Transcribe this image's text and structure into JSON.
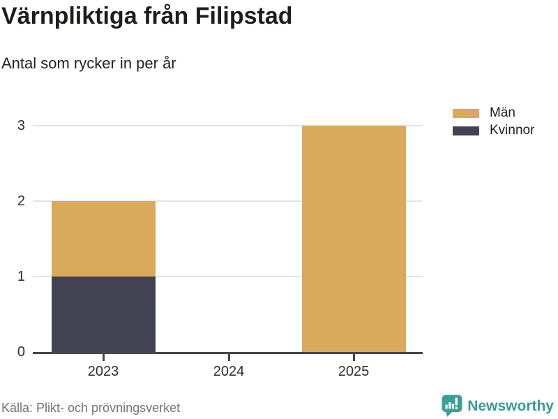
{
  "header": {
    "title": "Värnpliktiga från Filipstad",
    "subtitle": "Antal som rycker in per år"
  },
  "legend": {
    "items": [
      {
        "label": "Män",
        "color": "#d9aa5b"
      },
      {
        "label": "Kvinnor",
        "color": "#434253"
      }
    ]
  },
  "chart_data": {
    "type": "bar",
    "stacked": true,
    "title": "Värnpliktiga från Filipstad",
    "subtitle": "Antal som rycker in per år",
    "categories": [
      "2023",
      "2024",
      "2025"
    ],
    "series": [
      {
        "name": "Män",
        "color": "#d9aa5b",
        "values": [
          1,
          0,
          3
        ]
      },
      {
        "name": "Kvinnor",
        "color": "#434253",
        "values": [
          1,
          0,
          0
        ]
      }
    ],
    "stack_order_bottom_to_top": [
      "Kvinnor",
      "Män"
    ],
    "xlabel": "",
    "ylabel": "",
    "ylim": [
      0,
      3
    ],
    "yticks": [
      0,
      1,
      2,
      3
    ],
    "grid": true,
    "legend_position": "top-right"
  },
  "footer": {
    "source": "Källa: Plikt- och prövningsverket",
    "brand": "Newsworthy"
  },
  "colors": {
    "grid": "#e3e3e3",
    "axis": "#47464d",
    "brand_teal": "#3aa096",
    "source_text": "#72727c"
  }
}
